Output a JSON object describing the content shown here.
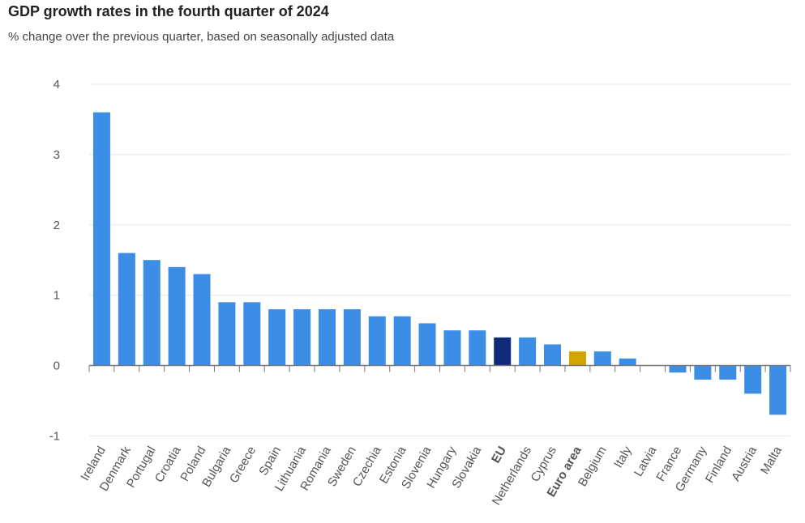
{
  "title": "GDP growth rates in the fourth quarter of 2024",
  "subtitle": "% change over the previous quarter, based on seasonally adjusted data",
  "colors": {
    "default_bar": "#3b8de6",
    "eu_bar": "#0e2a78",
    "euro_area_bar": "#d1a500",
    "grid": "#e4e7ee",
    "axis": "#777777"
  },
  "chart_data": {
    "type": "bar",
    "ylim": [
      -1,
      4
    ],
    "yticks": [
      -1,
      0,
      1,
      2,
      3,
      4
    ],
    "grid": true,
    "categories": [
      "Ireland",
      "Denmark",
      "Portugal",
      "Croatia",
      "Poland",
      "Bulgaria",
      "Greece",
      "Spain",
      "Lithuania",
      "Romania",
      "Sweden",
      "Czechia",
      "Estonia",
      "Slovenia",
      "Hungary",
      "Slovakia",
      "EU",
      "Netherlands",
      "Cyprus",
      "Euro area",
      "Belgium",
      "Italy",
      "Latvia",
      "France",
      "Germany",
      "Finland",
      "Austria",
      "Malta"
    ],
    "values": [
      3.6,
      1.6,
      1.5,
      1.4,
      1.3,
      0.9,
      0.9,
      0.8,
      0.8,
      0.8,
      0.8,
      0.7,
      0.7,
      0.6,
      0.5,
      0.5,
      0.4,
      0.4,
      0.3,
      0.2,
      0.2,
      0.1,
      0.0,
      -0.1,
      -0.2,
      -0.2,
      -0.4,
      -0.7
    ],
    "highlight": {
      "EU": "eu_bar",
      "Euro area": "euro_area_bar"
    },
    "bold_categories": [
      "EU",
      "Euro area"
    ]
  }
}
